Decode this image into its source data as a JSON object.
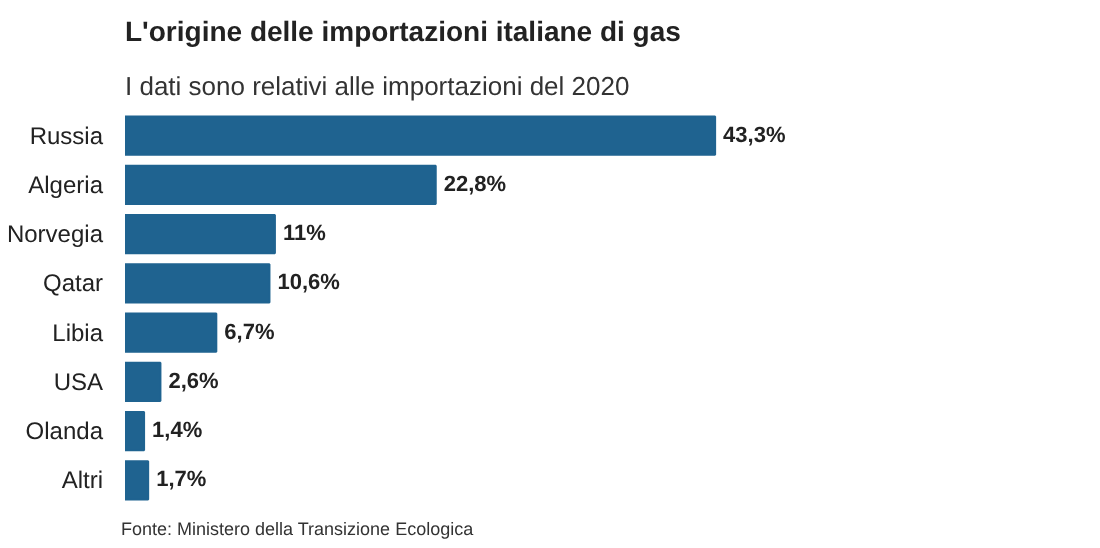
{
  "chart_data": {
    "type": "bar",
    "orientation": "horizontal",
    "title": "L'origine delle importazioni italiane di gas",
    "subtitle": "I dati sono relativi alle importazioni del 2020",
    "categories": [
      "Russia",
      "Algeria",
      "Norvegia",
      "Qatar",
      "Libia",
      "USA",
      "Olanda",
      "Altri"
    ],
    "values": [
      43.3,
      22.8,
      11,
      10.6,
      6.7,
      2.6,
      1.4,
      1.7
    ],
    "value_labels": [
      "43,3%",
      "22,8%",
      "11%",
      "10,6%",
      "6,7%",
      "2,6%",
      "1,4%",
      "1,7%"
    ],
    "color": "#1f6390",
    "annotations": [
      "Fonte: Ministero della Transizione Ecologica"
    ],
    "grid": false
  }
}
